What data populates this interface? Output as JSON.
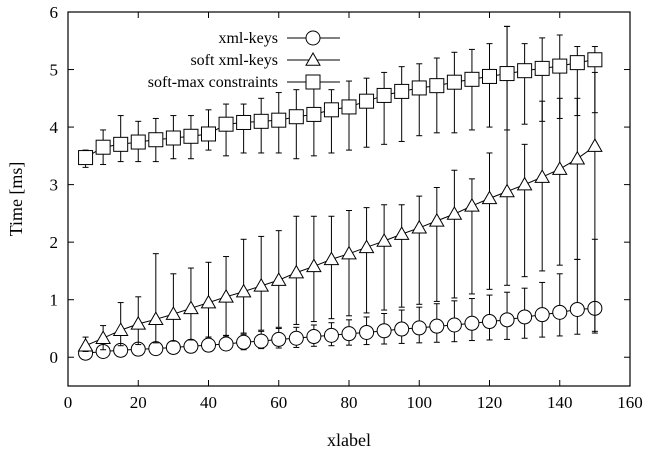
{
  "chart_data": {
    "type": "line",
    "title": "",
    "xlabel": "xlabel",
    "ylabel": "Time [ms]",
    "xlim": [
      0,
      160
    ],
    "ylim": [
      -0.5,
      6
    ],
    "x_ticks": [
      0,
      20,
      40,
      60,
      80,
      100,
      120,
      140,
      160
    ],
    "y_ticks": [
      0,
      1,
      2,
      3,
      4,
      5,
      6
    ],
    "x_tick_labels": [
      "0",
      "20",
      "40",
      "60",
      "80",
      "100",
      "120",
      "140",
      "160"
    ],
    "y_tick_labels": [
      "0",
      "1",
      "2",
      "3",
      "4",
      "5",
      "6"
    ],
    "grid": false,
    "legend_position": "top-center",
    "x": [
      5,
      10,
      15,
      20,
      25,
      30,
      35,
      40,
      45,
      50,
      55,
      60,
      65,
      70,
      75,
      80,
      85,
      90,
      95,
      100,
      105,
      110,
      115,
      120,
      125,
      130,
      135,
      140,
      145,
      150
    ],
    "series": [
      {
        "name": "xml-keys",
        "marker": "circle",
        "values": [
          0.07,
          0.1,
          0.12,
          0.14,
          0.15,
          0.17,
          0.19,
          0.21,
          0.23,
          0.26,
          0.28,
          0.31,
          0.33,
          0.36,
          0.38,
          0.41,
          0.43,
          0.46,
          0.49,
          0.51,
          0.54,
          0.56,
          0.59,
          0.62,
          0.65,
          0.7,
          0.74,
          0.78,
          0.83,
          0.85
        ],
        "err_low": [
          0.03,
          0.05,
          0.06,
          0.08,
          0.09,
          0.1,
          0.1,
          0.11,
          0.12,
          0.13,
          0.15,
          0.16,
          0.17,
          0.19,
          0.2,
          0.21,
          0.22,
          0.23,
          0.24,
          0.25,
          0.26,
          0.27,
          0.29,
          0.3,
          0.31,
          0.33,
          0.35,
          0.37,
          0.4,
          0.42
        ],
        "err_high": [
          0.12,
          0.16,
          0.18,
          0.22,
          0.24,
          0.28,
          0.3,
          0.35,
          0.37,
          0.4,
          0.45,
          0.5,
          0.52,
          0.56,
          0.6,
          0.65,
          0.7,
          0.76,
          0.82,
          0.87,
          0.93,
          0.98,
          1.02,
          1.08,
          1.13,
          1.2,
          1.3,
          1.45,
          1.7,
          2.05
        ]
      },
      {
        "name": "soft xml-keys",
        "marker": "triangle",
        "values": [
          0.2,
          0.33,
          0.47,
          0.58,
          0.66,
          0.75,
          0.85,
          0.95,
          1.05,
          1.14,
          1.24,
          1.34,
          1.47,
          1.58,
          1.7,
          1.8,
          1.91,
          2.02,
          2.14,
          2.25,
          2.37,
          2.49,
          2.63,
          2.76,
          2.88,
          3.0,
          3.13,
          3.27,
          3.45,
          3.67
        ],
        "err_low": [
          0.1,
          0.13,
          0.2,
          0.22,
          0.25,
          0.28,
          0.3,
          0.35,
          0.38,
          0.42,
          0.47,
          0.52,
          0.57,
          0.62,
          0.67,
          0.72,
          0.77,
          0.82,
          0.87,
          0.92,
          0.97,
          1.03,
          1.1,
          1.18,
          1.25,
          1.4,
          1.5,
          1.6,
          1.7,
          0.45
        ],
        "err_high": [
          0.35,
          0.55,
          0.95,
          1.05,
          1.8,
          1.45,
          1.55,
          1.65,
          1.75,
          2.05,
          2.1,
          2.2,
          2.45,
          2.45,
          2.45,
          2.55,
          2.6,
          2.65,
          2.65,
          2.8,
          2.95,
          3.25,
          3.1,
          3.55,
          5.75,
          3.7,
          4.45,
          4.5,
          4.5,
          4.95
        ]
      },
      {
        "name": "soft-max constraints",
        "marker": "square",
        "values": [
          3.47,
          3.65,
          3.7,
          3.74,
          3.78,
          3.81,
          3.84,
          3.88,
          4.05,
          4.08,
          4.1,
          4.12,
          4.18,
          4.22,
          4.3,
          4.35,
          4.45,
          4.55,
          4.62,
          4.68,
          4.72,
          4.78,
          4.83,
          4.88,
          4.93,
          4.98,
          5.02,
          5.06,
          5.12,
          5.17
        ],
        "err_low": [
          3.3,
          3.35,
          3.4,
          3.4,
          3.4,
          3.45,
          3.45,
          3.6,
          3.5,
          3.55,
          3.55,
          3.55,
          3.45,
          3.5,
          3.55,
          3.6,
          3.65,
          3.7,
          3.75,
          3.85,
          3.9,
          3.9,
          3.95,
          4.0,
          3.95,
          4.05,
          4.1,
          4.15,
          4.2,
          4.25
        ],
        "err_high": [
          3.6,
          3.95,
          4.2,
          4.1,
          4.15,
          4.2,
          4.2,
          4.3,
          4.4,
          4.4,
          4.5,
          4.6,
          4.65,
          4.7,
          4.65,
          4.8,
          4.85,
          4.95,
          5.05,
          5.1,
          5.2,
          5.3,
          5.35,
          5.45,
          5.75,
          5.45,
          5.55,
          5.6,
          5.4,
          5.4
        ]
      }
    ]
  }
}
